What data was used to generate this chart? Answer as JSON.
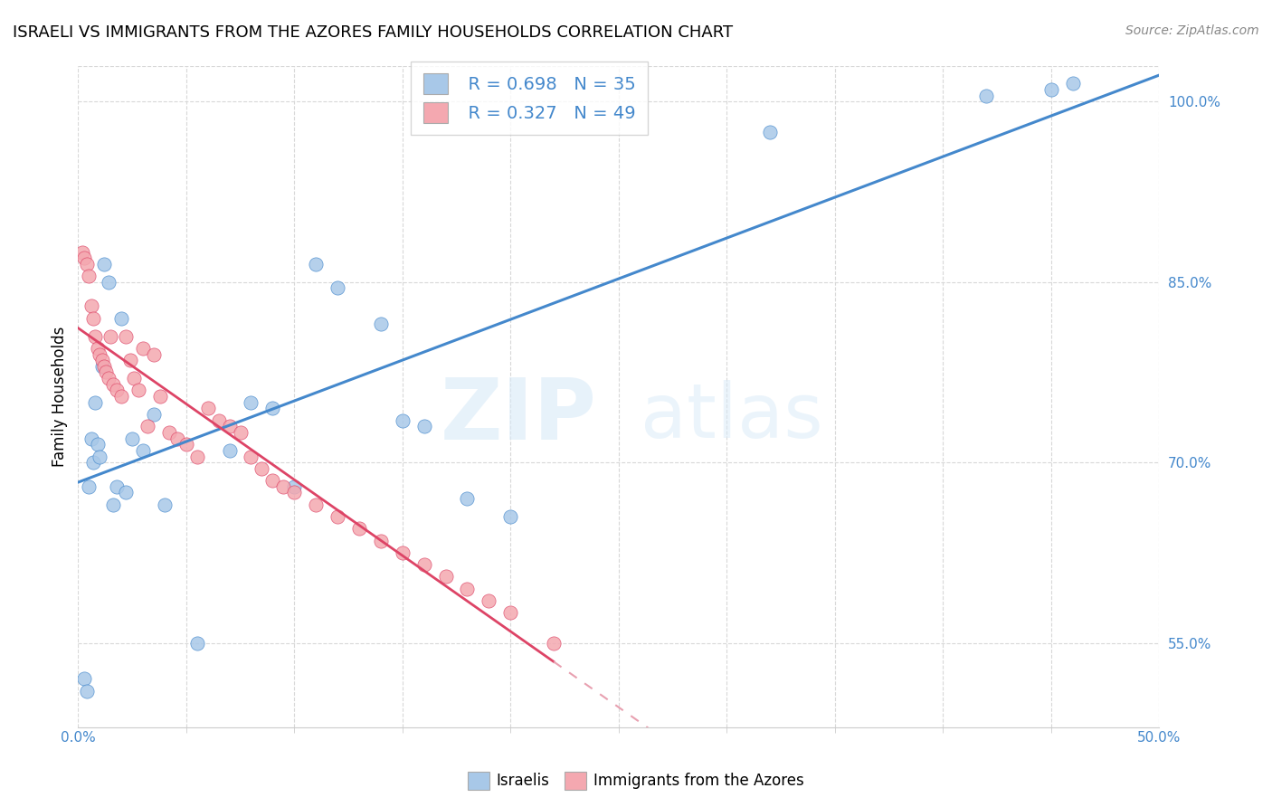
{
  "title": "ISRAELI VS IMMIGRANTS FROM THE AZORES FAMILY HOUSEHOLDS CORRELATION CHART",
  "source": "Source: ZipAtlas.com",
  "ylabel": "Family Households",
  "yticks_right": [
    55.0,
    70.0,
    85.0,
    100.0
  ],
  "ytick_labels_right": [
    "55.0%",
    "70.0%",
    "85.0%",
    "100.0%"
  ],
  "yticks_grid": [
    55.0,
    70.0,
    85.0,
    100.0
  ],
  "xlim": [
    0.0,
    50.0
  ],
  "ylim": [
    48.0,
    103.0
  ],
  "legend_r1": "R = 0.698",
  "legend_n1": "N = 35",
  "legend_r2": "R = 0.327",
  "legend_n2": "N = 49",
  "blue_color": "#a8c8e8",
  "pink_color": "#f4a8b0",
  "blue_fill_color": "#aec6e8",
  "pink_fill_color": "#f9bec4",
  "blue_line_color": "#4488cc",
  "pink_line_color": "#dd4466",
  "pink_dash_color": "#e8a0b0",
  "watermark_zip": "ZIP",
  "watermark_atlas": "atlas",
  "israelis_x": [
    0.3,
    0.4,
    0.5,
    0.6,
    0.7,
    0.8,
    0.9,
    1.0,
    1.1,
    1.2,
    1.4,
    1.6,
    1.8,
    2.0,
    2.2,
    2.5,
    3.0,
    3.5,
    4.0,
    5.5,
    7.0,
    8.0,
    9.0,
    10.0,
    11.0,
    12.0,
    14.0,
    15.0,
    16.0,
    18.0,
    20.0,
    32.0,
    42.0,
    45.0,
    46.0
  ],
  "israelis_y": [
    52.0,
    51.0,
    68.0,
    72.0,
    70.0,
    75.0,
    71.5,
    70.5,
    78.0,
    86.5,
    85.0,
    66.5,
    68.0,
    82.0,
    67.5,
    72.0,
    71.0,
    74.0,
    66.5,
    55.0,
    71.0,
    75.0,
    74.5,
    68.0,
    86.5,
    84.5,
    81.5,
    73.5,
    73.0,
    67.0,
    65.5,
    97.5,
    100.5,
    101.0,
    101.5
  ],
  "azores_x": [
    0.2,
    0.3,
    0.4,
    0.5,
    0.6,
    0.7,
    0.8,
    0.9,
    1.0,
    1.1,
    1.2,
    1.3,
    1.4,
    1.5,
    1.6,
    1.8,
    2.0,
    2.2,
    2.4,
    2.6,
    2.8,
    3.0,
    3.2,
    3.5,
    3.8,
    4.2,
    4.6,
    5.0,
    5.5,
    6.0,
    6.5,
    7.0,
    7.5,
    8.0,
    8.5,
    9.0,
    9.5,
    10.0,
    11.0,
    12.0,
    13.0,
    14.0,
    15.0,
    16.0,
    17.0,
    18.0,
    19.0,
    20.0,
    22.0
  ],
  "azores_y": [
    87.5,
    87.0,
    86.5,
    85.5,
    83.0,
    82.0,
    80.5,
    79.5,
    79.0,
    78.5,
    78.0,
    77.5,
    77.0,
    80.5,
    76.5,
    76.0,
    75.5,
    80.5,
    78.5,
    77.0,
    76.0,
    79.5,
    73.0,
    79.0,
    75.5,
    72.5,
    72.0,
    71.5,
    70.5,
    74.5,
    73.5,
    73.0,
    72.5,
    70.5,
    69.5,
    68.5,
    68.0,
    67.5,
    66.5,
    65.5,
    64.5,
    63.5,
    62.5,
    61.5,
    60.5,
    59.5,
    58.5,
    57.5,
    55.0
  ],
  "grid_color": "#d8d8d8"
}
